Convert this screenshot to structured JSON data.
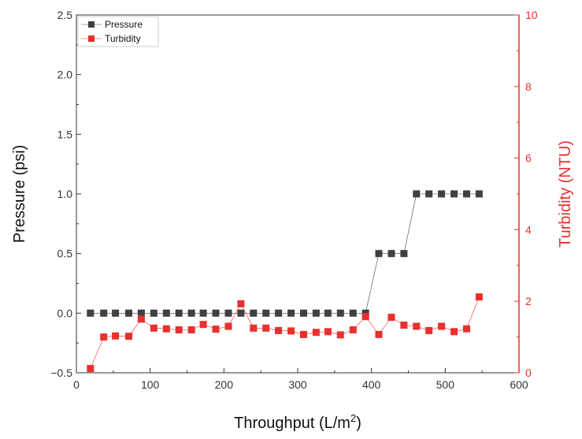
{
  "chart_data": {
    "type": "scatter",
    "x_axis": {
      "label": "Throughput (L/m",
      "label_superscript": "2",
      "label_suffix": ")",
      "range": [
        0,
        600
      ],
      "ticks": [
        0,
        100,
        200,
        300,
        400,
        500,
        600
      ],
      "tick_labels": [
        "0",
        "100",
        "200",
        "300",
        "400",
        "500",
        "600"
      ]
    },
    "y_left": {
      "label": "Pressure (psi)",
      "range": [
        -0.5,
        2.5
      ],
      "ticks": [
        -0.5,
        0,
        0.5,
        1,
        1.5,
        2,
        2.5
      ],
      "tick_labels": [
        "−0.5",
        "0.0",
        "0.5",
        "1.0",
        "1.5",
        "2.0",
        "2.5"
      ]
    },
    "y_right": {
      "label": "Turbidity (NTU)",
      "range": [
        0,
        10
      ],
      "ticks": [
        0,
        2,
        4,
        6,
        8,
        10
      ],
      "tick_labels": [
        "0",
        "2",
        "4",
        "6",
        "8",
        "10"
      ]
    },
    "legend": {
      "position": "top-left"
    },
    "series": [
      {
        "name": "Pressure",
        "axis": "left",
        "color": "#404040",
        "marker": "square",
        "x": [
          19,
          37,
          53,
          71,
          88,
          105,
          122,
          139,
          156,
          172,
          189,
          206,
          223,
          240,
          257,
          274,
          291,
          308,
          325,
          341,
          358,
          375,
          392,
          410,
          427,
          444,
          461,
          478,
          495,
          512,
          529,
          546
        ],
        "y": [
          0,
          0,
          0,
          0,
          0,
          0,
          0,
          0,
          0,
          0,
          0,
          0,
          0,
          0,
          0,
          0,
          0,
          0,
          0,
          0,
          0,
          0,
          0,
          0.5,
          0.5,
          0.5,
          1,
          1,
          1,
          1,
          1,
          1
        ]
      },
      {
        "name": "Turbidity",
        "axis": "right",
        "color": "#e8302e",
        "marker": "square",
        "x": [
          19,
          37,
          53,
          71,
          88,
          105,
          122,
          139,
          156,
          172,
          189,
          206,
          223,
          240,
          257,
          274,
          291,
          308,
          325,
          341,
          358,
          375,
          392,
          410,
          427,
          444,
          461,
          478,
          495,
          512,
          529,
          546
        ],
        "y": [
          0.12,
          1.0,
          1.03,
          1.02,
          1.5,
          1.25,
          1.23,
          1.2,
          1.2,
          1.35,
          1.22,
          1.3,
          1.93,
          1.25,
          1.25,
          1.18,
          1.17,
          1.07,
          1.13,
          1.15,
          1.06,
          1.2,
          1.57,
          1.07,
          1.55,
          1.33,
          1.3,
          1.18,
          1.3,
          1.15,
          1.23,
          2.12
        ]
      }
    ]
  }
}
